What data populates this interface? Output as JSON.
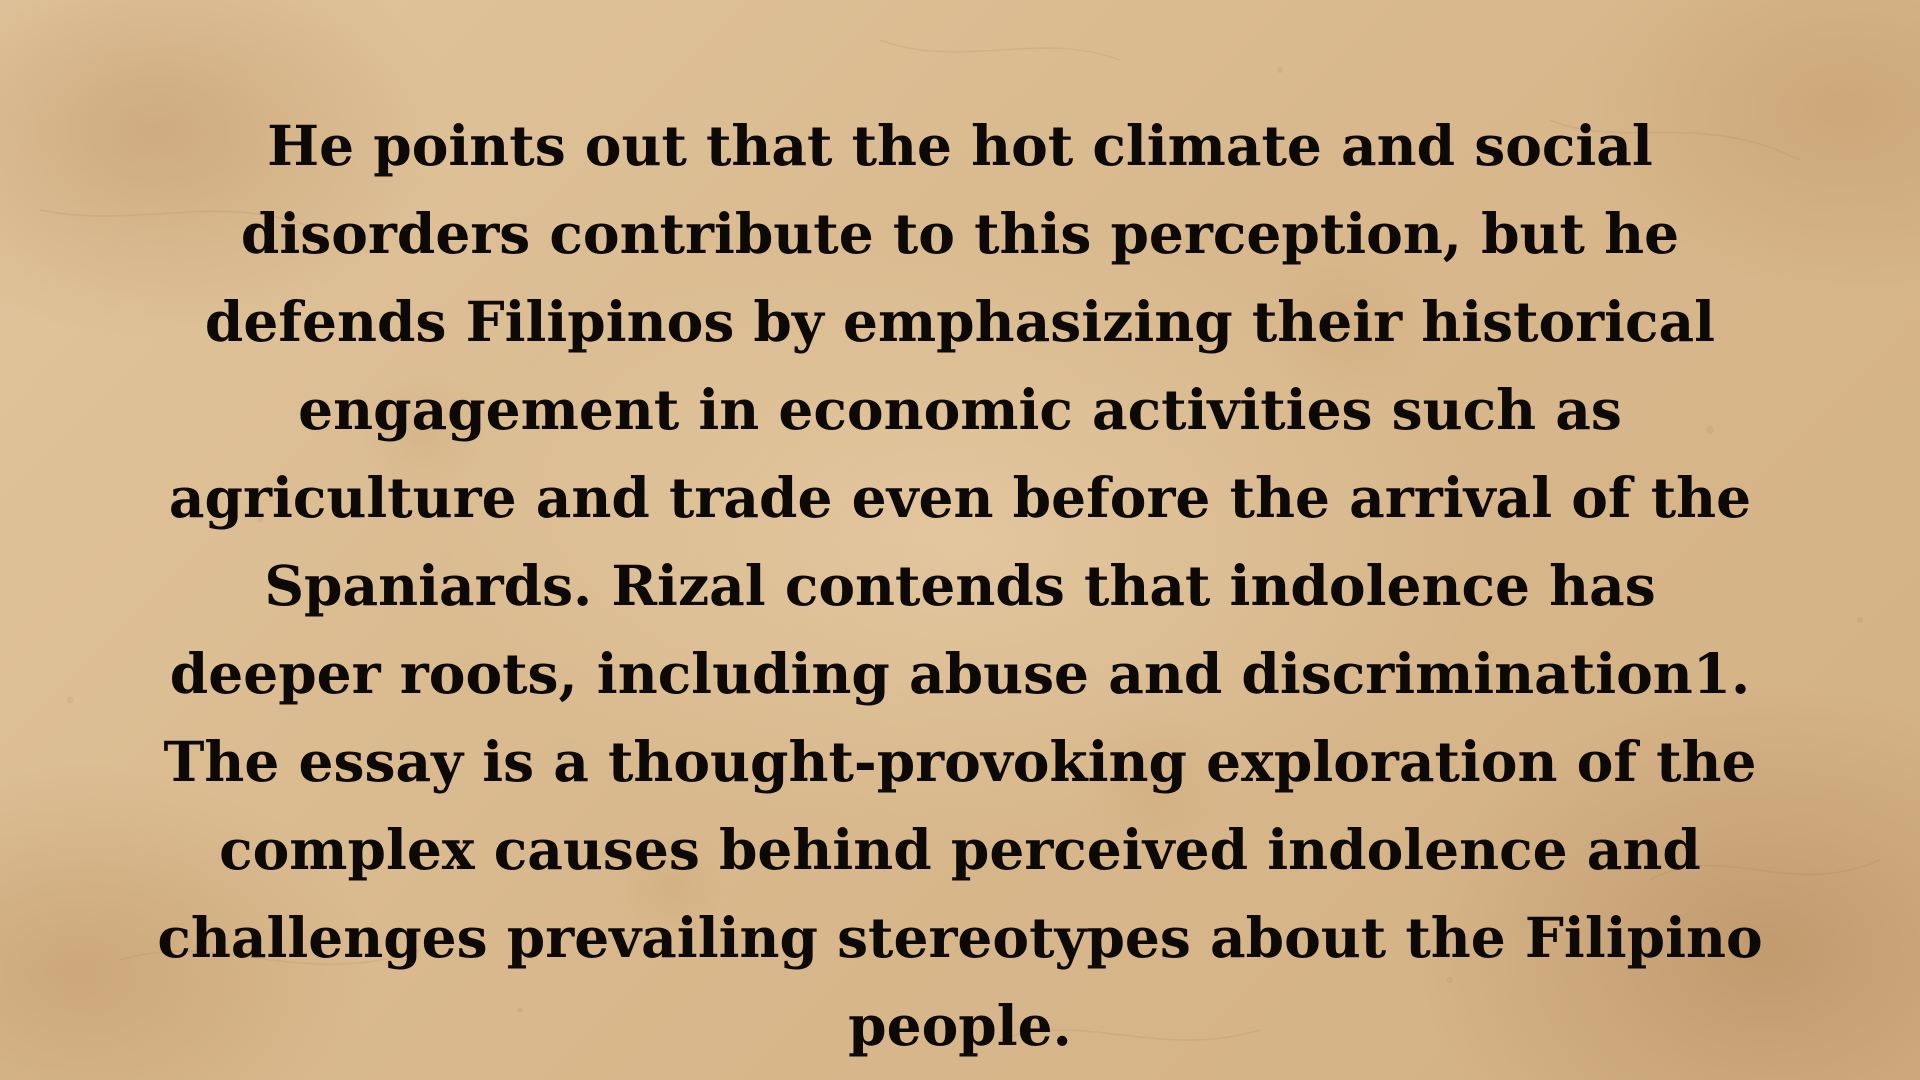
{
  "slide": {
    "lines": [
      "He points out that the hot climate and social",
      "disorders contribute to this perception, but he",
      "defends Filipinos by emphasizing their historical",
      "engagement in economic activities such as",
      "agriculture and trade even before the arrival of the",
      "Spaniards. Rizal contends that indolence has",
      "deeper roots, including abuse and discrimination1.",
      "The essay is a thought-provoking exploration of the",
      "complex causes behind perceived indolence and",
      "challenges prevailing stereotypes about the Filipino",
      "people."
    ]
  },
  "colors": {
    "text": "#0c0906",
    "paper": "#dcbd93"
  }
}
